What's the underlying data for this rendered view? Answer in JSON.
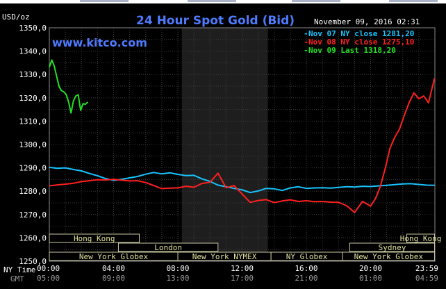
{
  "chart_data": {
    "type": "line",
    "title": "24 Hour Spot Gold (Bid)",
    "brand": "www.kitco.com",
    "timestamp": "November 09, 2016 02:31",
    "ylabel": "USD/oz",
    "ylim": [
      1250,
      1350
    ],
    "yticks": [
      "1350,0",
      "1340,0",
      "1330,0",
      "1320,0",
      "1310,0",
      "1300,0",
      "1290,0",
      "1280,0",
      "1270,0",
      "1260,0",
      "1250,0"
    ],
    "xlim": [
      0,
      24
    ],
    "x_row_labels": [
      "NY Time",
      "GMT"
    ],
    "xticks_ny": [
      "00:00",
      "04:00",
      "08:00",
      "12:00",
      "16:00",
      "20:00",
      "23:59"
    ],
    "xticks_gmt": [
      "05:00",
      "09:00",
      "13:00",
      "17:00",
      "21:00",
      "01:00",
      "04:59"
    ],
    "grid": true,
    "legend_position": "top-right",
    "series": [
      {
        "name": "Nov 07 NY close 1281,20",
        "color": "#18c4ff",
        "x": [
          0,
          0.5,
          1,
          1.5,
          2,
          2.5,
          3,
          3.5,
          4,
          4.5,
          5,
          5.5,
          6,
          6.5,
          7,
          7.5,
          8,
          8.5,
          9,
          9.5,
          10,
          10.5,
          11,
          11.5,
          12,
          12.5,
          13,
          13.5,
          14,
          14.5,
          15,
          15.5,
          16,
          16.5,
          17,
          17.5,
          18,
          18.5,
          19,
          19.5,
          20,
          20.5,
          21,
          21.5,
          22,
          22.5,
          23,
          23.5,
          23.98
        ],
        "values": [
          1290.2,
          1289.8,
          1290.0,
          1289.3,
          1288.7,
          1287.6,
          1286.6,
          1285.4,
          1284.6,
          1285.1,
          1285.7,
          1286.3,
          1287.3,
          1288.0,
          1287.4,
          1287.9,
          1287.2,
          1286.7,
          1286.8,
          1285.3,
          1284.2,
          1282.6,
          1281.9,
          1281.2,
          1280.6,
          1279.4,
          1280.1,
          1281.2,
          1281.0,
          1280.3,
          1281.4,
          1281.9,
          1281.2,
          1281.4,
          1281.5,
          1281.3,
          1281.6,
          1281.9,
          1281.8,
          1282.1,
          1282.0,
          1282.3,
          1282.5,
          1282.8,
          1283.1,
          1283.2,
          1282.9,
          1282.6,
          1282.5
        ]
      },
      {
        "name": "Nov 08 NY close 1275,10",
        "color": "#ff2020",
        "x": [
          0,
          0.5,
          1,
          1.5,
          2,
          2.5,
          3,
          3.5,
          4,
          4.5,
          5,
          5.5,
          6,
          6.5,
          7,
          7.5,
          8,
          8.5,
          9,
          9.5,
          10,
          10.5,
          11,
          11.5,
          12,
          12.5,
          13,
          13.5,
          14,
          14.5,
          15,
          15.5,
          16,
          16.5,
          17,
          17.5,
          18,
          18.5,
          19,
          19.5,
          20,
          20.3,
          20.6,
          20.9,
          21.2,
          21.5,
          21.8,
          22.1,
          22.4,
          22.7,
          23.0,
          23.3,
          23.6,
          23.98
        ],
        "values": [
          1282.3,
          1282.7,
          1283.0,
          1283.4,
          1284.1,
          1284.5,
          1284.9,
          1284.8,
          1285.1,
          1284.7,
          1284.4,
          1284.5,
          1283.7,
          1282.4,
          1281.1,
          1281.3,
          1281.4,
          1282.1,
          1281.7,
          1283.3,
          1283.8,
          1287.7,
          1281.5,
          1282.4,
          1278.8,
          1275.2,
          1276.0,
          1276.4,
          1275.1,
          1275.8,
          1276.3,
          1275.6,
          1275.9,
          1275.5,
          1275.6,
          1275.3,
          1275.2,
          1273.8,
          1270.9,
          1275.6,
          1273.6,
          1276.8,
          1281.9,
          1289.5,
          1298.3,
          1303.1,
          1306.6,
          1312.6,
          1318.0,
          1322.1,
          1319.6,
          1320.8,
          1317.9,
          1328.4
        ]
      },
      {
        "name": "Nov 09 Last 1318,20",
        "color": "#22e022",
        "x": [
          0,
          0.15,
          0.3,
          0.45,
          0.6,
          0.75,
          0.9,
          1.05,
          1.2,
          1.35,
          1.5,
          1.65,
          1.8,
          1.95,
          2.1,
          2.25,
          2.4
        ],
        "values": [
          1333.1,
          1336.2,
          1333.8,
          1329.4,
          1325.0,
          1323.1,
          1322.6,
          1321.4,
          1318.2,
          1313.5,
          1318.7,
          1320.8,
          1321.3,
          1314.6,
          1317.5,
          1317.2,
          1318.2
        ]
      }
    ],
    "sessions": [
      {
        "name": "Hong Kong",
        "start": 0,
        "end": 5.6,
        "row": 1
      },
      {
        "name": "Hong Kong",
        "start": 22.25,
        "end": 23.98,
        "row": 1
      },
      {
        "name": "London",
        "start": 4.3,
        "end": 10.5,
        "row": 2
      },
      {
        "name": "Sydney",
        "start": 18.7,
        "end": 23.98,
        "row": 2
      },
      {
        "name": "New York Globex",
        "start": 0,
        "end": 8.0,
        "row": 3
      },
      {
        "name": "New York NYMEX",
        "start": 8.0,
        "end": 13.8,
        "row": 3
      },
      {
        "name": "NY Globex",
        "start": 13.8,
        "end": 18.25,
        "row": 3
      },
      {
        "name": "New York Globex",
        "start": 18.25,
        "end": 23.98,
        "row": 3
      }
    ],
    "shaded_region": {
      "start": 8.25,
      "end": 13.6
    }
  }
}
